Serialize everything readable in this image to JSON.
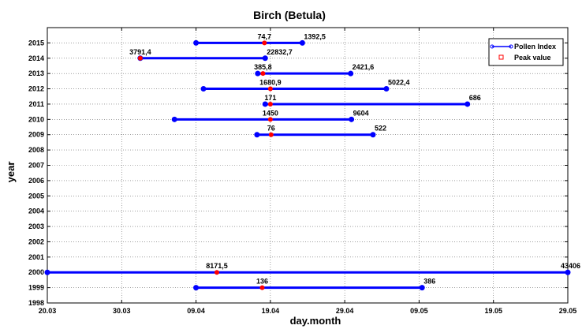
{
  "chart_data": {
    "type": "line",
    "title": "Birch (Betula)",
    "xlabel": "day.month",
    "ylabel": "year",
    "x_ticks": [
      "20.03",
      "30.03",
      "09.04",
      "19.04",
      "29.04",
      "09.05",
      "19.05",
      "29.05"
    ],
    "x_tick_days": [
      0,
      10,
      20,
      30,
      40,
      50,
      60,
      70
    ],
    "xlim": [
      0,
      70
    ],
    "y_ticks": [
      1998,
      1999,
      2000,
      2001,
      2002,
      2003,
      2004,
      2005,
      2006,
      2007,
      2008,
      2009,
      2010,
      2011,
      2012,
      2013,
      2014,
      2015
    ],
    "ylim": [
      1998,
      2016
    ],
    "grid": true,
    "legend": {
      "position": "top-right",
      "entries": [
        {
          "name": "Pollen Index",
          "color": "#0000ff",
          "marker": "circle"
        },
        {
          "name": "Peak value",
          "color": "#ff0000",
          "marker": "square"
        }
      ]
    },
    "series": [
      {
        "year": 2015,
        "start": 20,
        "end": 34.3,
        "peak": 29.2,
        "peak_label": "74,7",
        "index_label": "1392,5"
      },
      {
        "year": 2014,
        "start": 12.5,
        "end": 29.3,
        "peak": 12.5,
        "peak_label": "3791,4",
        "index_label": "22832,7"
      },
      {
        "year": 2013,
        "start": 28.3,
        "end": 40.8,
        "peak": 29.0,
        "peak_label": "385,8",
        "index_label": "2421,6"
      },
      {
        "year": 2012,
        "start": 21.0,
        "end": 45.6,
        "peak": 30.0,
        "peak_label": "1680,9",
        "index_label": "5022,4"
      },
      {
        "year": 2011,
        "start": 29.3,
        "end": 56.5,
        "peak": 30.0,
        "peak_label": "171",
        "index_label": "686"
      },
      {
        "year": 2010,
        "start": 17.1,
        "end": 40.9,
        "peak": 30.0,
        "peak_label": "1450",
        "index_label": "9604"
      },
      {
        "year": 2009,
        "start": 28.2,
        "end": 43.8,
        "peak": 30.1,
        "peak_label": "76",
        "index_label": "522"
      },
      {
        "year": 2000,
        "start": 0,
        "end": 70,
        "peak": 22.8,
        "peak_label": "8171,5",
        "index_label": "43406"
      },
      {
        "year": 1999,
        "start": 20,
        "end": 50.4,
        "peak": 28.9,
        "peak_label": "136",
        "index_label": "386"
      }
    ],
    "colors": {
      "line": "#0000ff",
      "peak": "#ff0000"
    }
  }
}
